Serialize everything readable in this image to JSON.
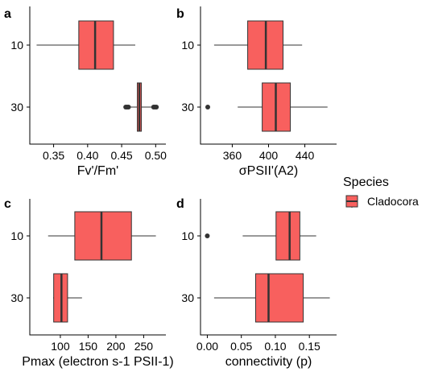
{
  "legend": {
    "title": "Species",
    "entries": [
      {
        "label": "Cladocora",
        "fill": "#F8605E"
      }
    ]
  },
  "colors": {
    "box_fill": "#F8605E",
    "box_stroke": "#333333",
    "axis": "#000000"
  },
  "chart_data": [
    {
      "type": "boxplot",
      "orientation": "horizontal",
      "panel": "a",
      "xlabel": "Fv'/Fm'",
      "ylabel": "",
      "xlim": [
        0.315,
        0.515
      ],
      "xticks": [
        0.35,
        0.4,
        0.45,
        0.5
      ],
      "xtick_labels": [
        "0.35",
        "0.40",
        "0.45",
        "0.50"
      ],
      "categories": [
        "10",
        "30"
      ],
      "boxes": [
        {
          "category": "10",
          "whisker_low": 0.325,
          "q1": 0.387,
          "median": 0.411,
          "q3": 0.438,
          "whisker_high": 0.47,
          "outliers": []
        },
        {
          "category": "30",
          "whisker_low": 0.46,
          "q1": 0.473,
          "median": 0.476,
          "q3": 0.479,
          "whisker_high": 0.495,
          "outliers": [
            0.456,
            0.458,
            0.46,
            0.497,
            0.499,
            0.501
          ]
        }
      ]
    },
    {
      "type": "boxplot",
      "orientation": "horizontal",
      "panel": "b",
      "xlabel": "σPSII'(A2)",
      "ylabel": "",
      "xlim": [
        325,
        475
      ],
      "xticks": [
        360,
        400,
        440
      ],
      "xtick_labels": [
        "360",
        "400",
        "440"
      ],
      "categories": [
        "10",
        "30"
      ],
      "boxes": [
        {
          "category": "10",
          "whisker_low": 340,
          "q1": 377,
          "median": 397,
          "q3": 416,
          "whisker_high": 437,
          "outliers": []
        },
        {
          "category": "30",
          "whisker_low": 366,
          "q1": 393,
          "median": 408,
          "q3": 424,
          "whisker_high": 465,
          "outliers": [
            333
          ]
        }
      ]
    },
    {
      "type": "boxplot",
      "orientation": "horizontal",
      "panel": "c",
      "xlabel": "Pmax (electron s-1 PSII-1)",
      "ylabel": "",
      "xlim": [
        45,
        290
      ],
      "xticks": [
        100,
        150,
        200,
        250
      ],
      "xtick_labels": [
        "100",
        "150",
        "200",
        "250"
      ],
      "categories": [
        "10",
        "30"
      ],
      "boxes": [
        {
          "category": "10",
          "whisker_low": 78,
          "q1": 126,
          "median": 174,
          "q3": 228,
          "whisker_high": 272,
          "outliers": []
        },
        {
          "category": "30",
          "whisker_low": 87,
          "q1": 88,
          "median": 102,
          "q3": 113,
          "whisker_high": 139,
          "outliers": []
        }
      ]
    },
    {
      "type": "boxplot",
      "orientation": "horizontal",
      "panel": "d",
      "xlabel": "connectivity (p)",
      "ylabel": "",
      "xlim": [
        -0.01,
        0.19
      ],
      "xticks": [
        0.0,
        0.05,
        0.1,
        0.15
      ],
      "xtick_labels": [
        "0.00",
        "0.05",
        "0.10",
        "0.15"
      ],
      "categories": [
        "10",
        "30"
      ],
      "boxes": [
        {
          "category": "10",
          "whisker_low": 0.052,
          "q1": 0.101,
          "median": 0.121,
          "q3": 0.136,
          "whisker_high": 0.16,
          "outliers": [
            0.0
          ]
        },
        {
          "category": "30",
          "whisker_low": 0.01,
          "q1": 0.071,
          "median": 0.09,
          "q3": 0.141,
          "whisker_high": 0.18,
          "outliers": []
        }
      ]
    }
  ]
}
